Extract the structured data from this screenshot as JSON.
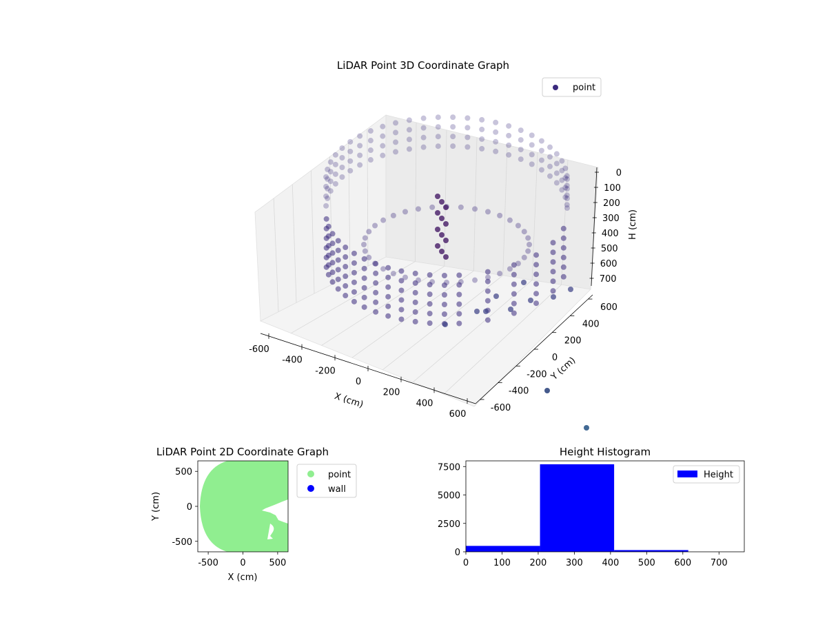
{
  "chart_data": [
    {
      "type": "scatter",
      "projection": "3d",
      "title": "LiDAR Point 3D Coordinate Graph",
      "xlabel": "X (cm)",
      "ylabel": "Y (cm)",
      "zlabel": "H (cm)",
      "xlim": [
        -650,
        650
      ],
      "ylim": [
        -650,
        650
      ],
      "zlim": [
        750,
        0
      ],
      "z_inverted": true,
      "xticks": [
        -600,
        -400,
        -200,
        0,
        200,
        400,
        600
      ],
      "yticks": [
        -600,
        -400,
        -200,
        0,
        200,
        400,
        600
      ],
      "zticks": [
        0,
        100,
        200,
        300,
        400,
        500,
        600,
        700
      ],
      "legend": {
        "entries": [
          "point"
        ],
        "placement": "upper-right"
      },
      "grid": true,
      "color": "#3b2a7e",
      "description_of_points": "ring of points, radius ~500-650 cm, heights ~150-500 cm, with dense vertical cluster near origin",
      "outliers": [
        {
          "x": 400,
          "y": -750,
          "h": 750
        },
        {
          "x": 450,
          "y": -1000,
          "h": 750
        }
      ]
    },
    {
      "type": "scatter",
      "title": "LiDAR Point 2D Coordinate Graph",
      "xlabel": "X (cm)",
      "ylabel": "Y (cm)",
      "xlim": [
        -650,
        650
      ],
      "ylim": [
        -650,
        650
      ],
      "xticks": [
        -500,
        0,
        500
      ],
      "yticks": [
        -500,
        0,
        500
      ],
      "series": [
        {
          "name": "point",
          "color": "#90ee90"
        },
        {
          "name": "wall",
          "color": "#0000ff"
        }
      ],
      "legend": {
        "placement": "outside-right"
      }
    },
    {
      "type": "bar",
      "subtype": "histogram",
      "title": "Height Histogram",
      "bins": [
        [
          0,
          205
        ],
        [
          205,
          410
        ],
        [
          410,
          615
        ],
        [
          615,
          770
        ]
      ],
      "values": [
        520,
        7700,
        150,
        0
      ],
      "xlim": [
        0,
        770
      ],
      "ylim": [
        0,
        8000
      ],
      "xticks": [
        0,
        100,
        200,
        300,
        400,
        500,
        600,
        700
      ],
      "yticks": [
        0,
        2500,
        5000,
        7500
      ],
      "series": [
        {
          "name": "Height",
          "color": "#0000ff"
        }
      ],
      "legend": {
        "placement": "upper-right"
      }
    }
  ]
}
